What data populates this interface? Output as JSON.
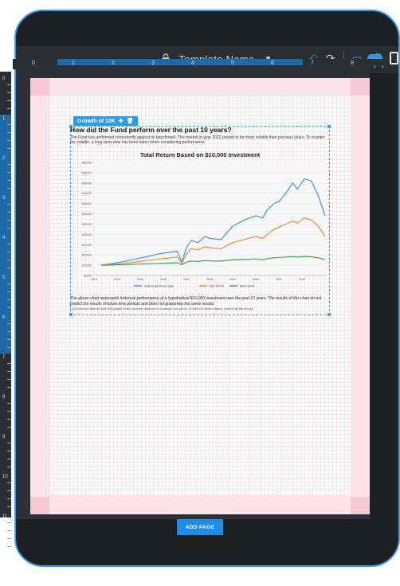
{
  "toolbar": {
    "template_name": "Template Name",
    "lock_icon": "lock-icon",
    "chevron_icon": "chevron-down-icon",
    "undo_icon": "undo-icon",
    "redo_icon": "redo-icon",
    "desktop_icon": "desktop-icon",
    "mobile_icon": "mobile-icon"
  },
  "ruler": {
    "h_ticks": [
      "0",
      "1",
      "2",
      "3",
      "4",
      "5",
      "6",
      "7",
      "8"
    ],
    "v_ticks": [
      "0",
      "1",
      "2",
      "3",
      "4",
      "5",
      "6",
      "7",
      "8",
      "9",
      "10",
      "11"
    ]
  },
  "widget": {
    "tag_label": "Growth of 10K",
    "move_icon": "move-icon",
    "delete_icon": "trash-icon"
  },
  "content": {
    "question": "How did the Fund perform over the past 10 years?",
    "description": "The Fund has performed consistently against its benchmark. The market in year 2022 proved to be more volatile than previous years. To counter the volatile, a long-term view has been taken when considering performance.",
    "disclaimer": "The above chart represents historical performance of a hypothetical $10,000 investment over the past 10 years. The results of this chart do not predict the results of future time periods and does not guarantee the same results.",
    "footnote": "* Quis eiusmod laborum aute velit pariatur minim commodo deserunt ex consequat non quis ex. Ut anim est veniam ullamco nostrud nisi sint nisi qui."
  },
  "chart_data": {
    "type": "line",
    "title": "Total Return Based on $10,000 Investment",
    "xlabel": "",
    "ylabel": "",
    "ylim": [
      5000,
      60000
    ],
    "xlim": [
      2013,
      2023
    ],
    "y_ticks": [
      "$60000",
      "$55000",
      "$50000",
      "$45000",
      "$40000",
      "$35000",
      "$30000",
      "$25000",
      "$20000",
      "$15000",
      "$10000",
      "$5000"
    ],
    "x_ticks": [
      "2013",
      "2014",
      "2015",
      "2016",
      "2017",
      "2018",
      "2019",
      "2020",
      "2021",
      "2022"
    ],
    "legend_position": "bottom",
    "series": [
      {
        "name": "Institutional Shares (s3k)",
        "color": "#4a90e2",
        "points": [
          [
            2013.3,
            10000
          ],
          [
            2013.8,
            10800
          ],
          [
            2014.3,
            11800
          ],
          [
            2014.8,
            13000
          ],
          [
            2015.3,
            14200
          ],
          [
            2015.8,
            15500
          ],
          [
            2016.2,
            16200
          ],
          [
            2016.6,
            16800
          ],
          [
            2016.8,
            11500
          ],
          [
            2017.0,
            18500
          ],
          [
            2017.2,
            22000
          ],
          [
            2017.5,
            21000
          ],
          [
            2017.8,
            24000
          ],
          [
            2018.0,
            23000
          ],
          [
            2018.5,
            22500
          ],
          [
            2019.0,
            29000
          ],
          [
            2019.5,
            32000
          ],
          [
            2020.0,
            34000
          ],
          [
            2020.3,
            33000
          ],
          [
            2020.5,
            37000
          ],
          [
            2020.8,
            40000
          ],
          [
            2021.0,
            41000
          ],
          [
            2021.3,
            45000
          ],
          [
            2021.6,
            50000
          ],
          [
            2021.8,
            47000
          ],
          [
            2022.1,
            52000
          ],
          [
            2022.4,
            51000
          ],
          [
            2022.7,
            44000
          ],
          [
            2023.0,
            34000
          ]
        ]
      },
      {
        "name": "S&P 500TR",
        "color": "#f0883e",
        "points": [
          [
            2013.3,
            10000
          ],
          [
            2013.8,
            10400
          ],
          [
            2014.3,
            10900
          ],
          [
            2014.8,
            11600
          ],
          [
            2015.3,
            12300
          ],
          [
            2015.8,
            13000
          ],
          [
            2016.2,
            13500
          ],
          [
            2016.6,
            14000
          ],
          [
            2016.8,
            11000
          ],
          [
            2017.0,
            15500
          ],
          [
            2017.2,
            18000
          ],
          [
            2017.5,
            17500
          ],
          [
            2017.8,
            19000
          ],
          [
            2018.0,
            18500
          ],
          [
            2018.5,
            18000
          ],
          [
            2019.0,
            21000
          ],
          [
            2019.5,
            22500
          ],
          [
            2020.0,
            24000
          ],
          [
            2020.3,
            23000
          ],
          [
            2020.5,
            25000
          ],
          [
            2020.8,
            27500
          ],
          [
            2021.0,
            28500
          ],
          [
            2021.3,
            30000
          ],
          [
            2021.6,
            31500
          ],
          [
            2021.8,
            30500
          ],
          [
            2022.1,
            33000
          ],
          [
            2022.4,
            32000
          ],
          [
            2022.7,
            29000
          ],
          [
            2023.0,
            24000
          ]
        ]
      },
      {
        "name": "MSCI World",
        "color": "#3aa35a",
        "points": [
          [
            2013.3,
            10000
          ],
          [
            2013.8,
            10100
          ],
          [
            2014.3,
            10300
          ],
          [
            2014.8,
            10500
          ],
          [
            2015.3,
            10700
          ],
          [
            2015.8,
            10900
          ],
          [
            2016.2,
            11000
          ],
          [
            2016.6,
            11200
          ],
          [
            2016.8,
            10300
          ],
          [
            2017.0,
            11500
          ],
          [
            2017.2,
            12000
          ],
          [
            2017.5,
            11800
          ],
          [
            2017.8,
            12300
          ],
          [
            2018.0,
            12100
          ],
          [
            2018.5,
            12000
          ],
          [
            2019.0,
            12600
          ],
          [
            2019.5,
            12800
          ],
          [
            2020.0,
            13000
          ],
          [
            2020.3,
            12600
          ],
          [
            2020.5,
            13200
          ],
          [
            2020.8,
            13600
          ],
          [
            2021.0,
            13800
          ],
          [
            2021.3,
            14000
          ],
          [
            2021.6,
            14200
          ],
          [
            2021.8,
            13900
          ],
          [
            2022.1,
            14300
          ],
          [
            2022.4,
            14100
          ],
          [
            2022.7,
            13600
          ],
          [
            2023.0,
            12800
          ]
        ]
      }
    ]
  },
  "footer": {
    "add_page_label": "ADD PAGE"
  }
}
